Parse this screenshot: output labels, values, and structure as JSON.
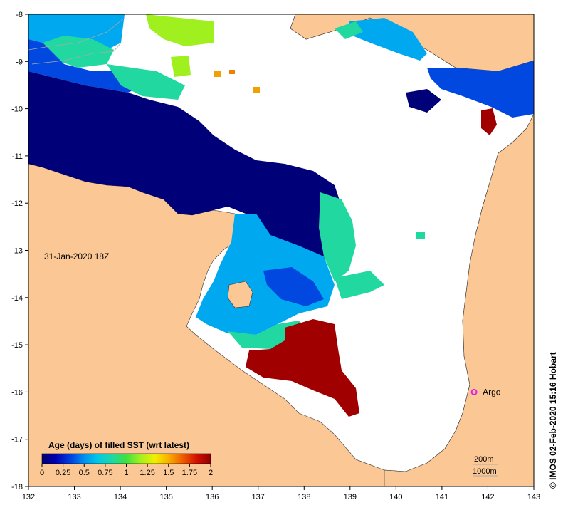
{
  "map": {
    "date_label": "31-Jan-2020 18Z",
    "credit": "© IMOS 02-Feb-2020 15:16 Hobart",
    "x_ticks": [
      "132",
      "133",
      "134",
      "135",
      "136",
      "137",
      "138",
      "139",
      "140",
      "141",
      "142",
      "143"
    ],
    "y_ticks": [
      "-8",
      "-9",
      "-10",
      "-11",
      "-12",
      "-13",
      "-14",
      "-15",
      "-16",
      "-17",
      "-18"
    ],
    "lon_range": [
      132,
      143
    ],
    "lat_range": [
      -8,
      -18
    ],
    "argo": {
      "label": "Argo",
      "lon": 141.7,
      "lat": -16.0
    },
    "isobaths": [
      "200m",
      "1000m"
    ],
    "colors": {
      "land": "#FBC895",
      "ocean_nodata": "#ffffff",
      "argo_marker": "#E020E0"
    }
  },
  "legend": {
    "title": "Age (days) of filled SST (wrt latest)",
    "ticks": [
      "0",
      "0.25",
      "0.5",
      "0.75",
      "1",
      "1.25",
      "1.5",
      "1.75",
      "2"
    ],
    "colormap": [
      "#000070",
      "#0000B0",
      "#0040E0",
      "#0090F0",
      "#00C8E8",
      "#20D8A0",
      "#40E040",
      "#A0F020",
      "#F0F000",
      "#F8B000",
      "#F06000",
      "#D01000",
      "#900000"
    ]
  }
}
